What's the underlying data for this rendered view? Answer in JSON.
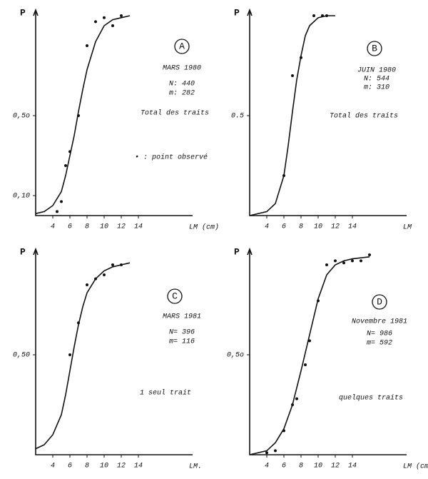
{
  "chart_data": [
    {
      "type": "scatter",
      "panel": "A",
      "ylabel": "P",
      "xlabel": "LM (cm)",
      "annotations": [
        "MARS 1980",
        "N: 440",
        "m: 282",
        "Total des traits"
      ],
      "legend": "• : point observé",
      "xlim": [
        2,
        22
      ],
      "ylim": [
        0,
        1
      ],
      "xticks": [
        4,
        6,
        8,
        10,
        12,
        14
      ],
      "yticks": [
        {
          "value": 0.1,
          "label": "0,10"
        },
        {
          "value": 0.5,
          "label": "0,5o"
        }
      ],
      "points": {
        "x": [
          4.5,
          5,
          5.5,
          6,
          7,
          8,
          9,
          10,
          11,
          12
        ],
        "values": [
          0.02,
          0.07,
          0.25,
          0.32,
          0.5,
          0.85,
          0.97,
          0.99,
          0.95,
          1.0
        ]
      },
      "curve": {
        "x": [
          2,
          3,
          4,
          5,
          5.5,
          6,
          6.5,
          7,
          7.5,
          8,
          9,
          10,
          11,
          12,
          13
        ],
        "values": [
          0.01,
          0.02,
          0.05,
          0.12,
          0.2,
          0.3,
          0.4,
          0.52,
          0.63,
          0.73,
          0.87,
          0.95,
          0.98,
          0.99,
          1.0
        ]
      }
    },
    {
      "type": "scatter",
      "panel": "B",
      "ylabel": "P",
      "xlabel": "LM",
      "annotations": [
        "JUIN 1980",
        "N: 544",
        "m: 310",
        "Total des traits"
      ],
      "xlim": [
        2,
        22
      ],
      "ylim": [
        0,
        1
      ],
      "xticks": [
        4,
        6,
        8,
        10,
        12,
        14
      ],
      "yticks": [
        {
          "value": 0.5,
          "label": "0.5"
        }
      ],
      "points": {
        "x": [
          6,
          7,
          8,
          9.5,
          10.5,
          11
        ],
        "values": [
          0.2,
          0.7,
          0.79,
          1.0,
          1.0,
          1.0
        ]
      },
      "curve": {
        "x": [
          2,
          4,
          5,
          6,
          6.5,
          7,
          7.5,
          8,
          8.5,
          9,
          10,
          11,
          12
        ],
        "values": [
          0.0,
          0.02,
          0.06,
          0.2,
          0.35,
          0.52,
          0.68,
          0.8,
          0.9,
          0.95,
          0.99,
          1.0,
          1.0
        ]
      }
    },
    {
      "type": "scatter",
      "panel": "C",
      "ylabel": "P",
      "xlabel": "LM.",
      "annotations": [
        "MARS 1981",
        "N= 396",
        "m= 116",
        "1 seul trait"
      ],
      "xlim": [
        2,
        22
      ],
      "ylim": [
        0,
        1
      ],
      "xticks": [
        4,
        6,
        8,
        10,
        12,
        14
      ],
      "yticks": [
        {
          "value": 0.5,
          "label": "0,50"
        }
      ],
      "points": {
        "x": [
          6,
          7,
          8,
          9,
          10,
          11,
          12
        ],
        "values": [
          0.5,
          0.66,
          0.85,
          0.88,
          0.9,
          0.95,
          0.95
        ]
      },
      "curve": {
        "x": [
          2,
          3,
          4,
          5,
          5.5,
          6,
          6.5,
          7,
          7.5,
          8,
          9,
          10,
          11,
          12,
          13
        ],
        "values": [
          0.03,
          0.05,
          0.1,
          0.2,
          0.3,
          0.42,
          0.54,
          0.65,
          0.74,
          0.81,
          0.88,
          0.92,
          0.94,
          0.95,
          0.96
        ]
      }
    },
    {
      "type": "scatter",
      "panel": "D",
      "ylabel": "P",
      "xlabel": "LM (cm)",
      "annotations": [
        "Novembre 1981",
        "N= 986",
        "m= 592",
        "quelques traits"
      ],
      "xlim": [
        2,
        22
      ],
      "ylim": [
        0,
        1
      ],
      "xticks": [
        4,
        6,
        8,
        10,
        12,
        14
      ],
      "yticks": [
        {
          "value": 0.5,
          "label": "0,5o"
        }
      ],
      "points": {
        "x": [
          4,
          5,
          6,
          7,
          7.5,
          8.5,
          9,
          10,
          11,
          12,
          13,
          14,
          15,
          16
        ],
        "values": [
          0.01,
          0.02,
          0.12,
          0.25,
          0.28,
          0.45,
          0.57,
          0.77,
          0.95,
          0.97,
          0.96,
          0.97,
          0.97,
          1.0
        ]
      },
      "curve": {
        "x": [
          2,
          4,
          5,
          6,
          7,
          8,
          9,
          10,
          11,
          12,
          13,
          14,
          16
        ],
        "values": [
          0.0,
          0.02,
          0.06,
          0.13,
          0.25,
          0.42,
          0.6,
          0.78,
          0.9,
          0.95,
          0.97,
          0.98,
          0.99
        ]
      }
    }
  ]
}
